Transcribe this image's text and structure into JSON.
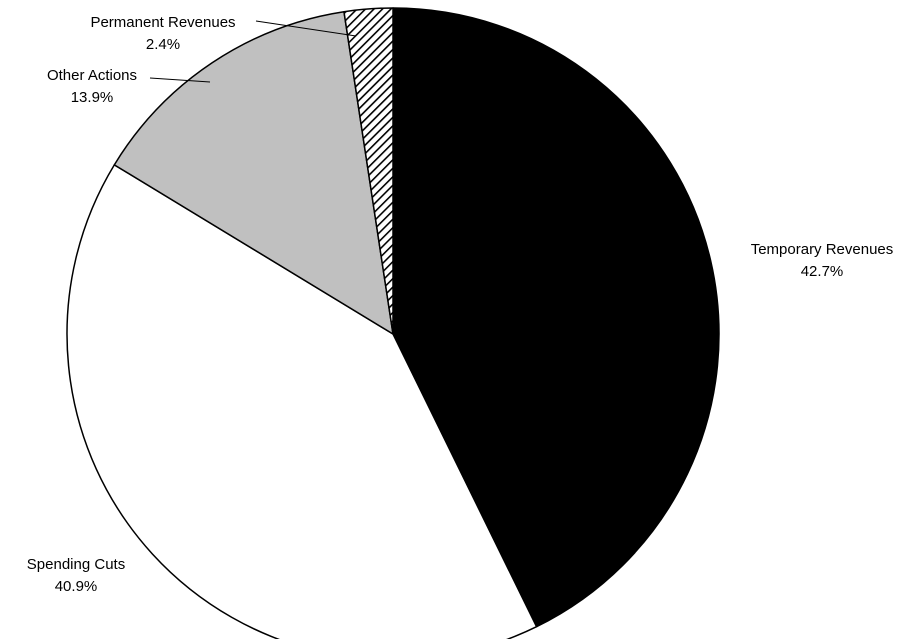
{
  "chart_data": {
    "type": "pie",
    "title": "",
    "start_angle_deg": 0,
    "direction": "clockwise",
    "slices": [
      {
        "label": "Temporary Revenues",
        "value": 42.7,
        "value_label": "42.7%",
        "fill": "#000000",
        "pattern": "none"
      },
      {
        "label": "Spending Cuts",
        "value": 40.9,
        "value_label": "40.9%",
        "fill": "#ffffff",
        "pattern": "none"
      },
      {
        "label": "Other Actions",
        "value": 13.9,
        "value_label": "13.9%",
        "fill": "#c0c0c0",
        "pattern": "none"
      },
      {
        "label": "Permanent Revenues",
        "value": 2.4,
        "value_label": "2.4%",
        "fill": "#ffffff",
        "pattern": "diagonal-hatch"
      }
    ],
    "stroke_color": "#000000"
  }
}
